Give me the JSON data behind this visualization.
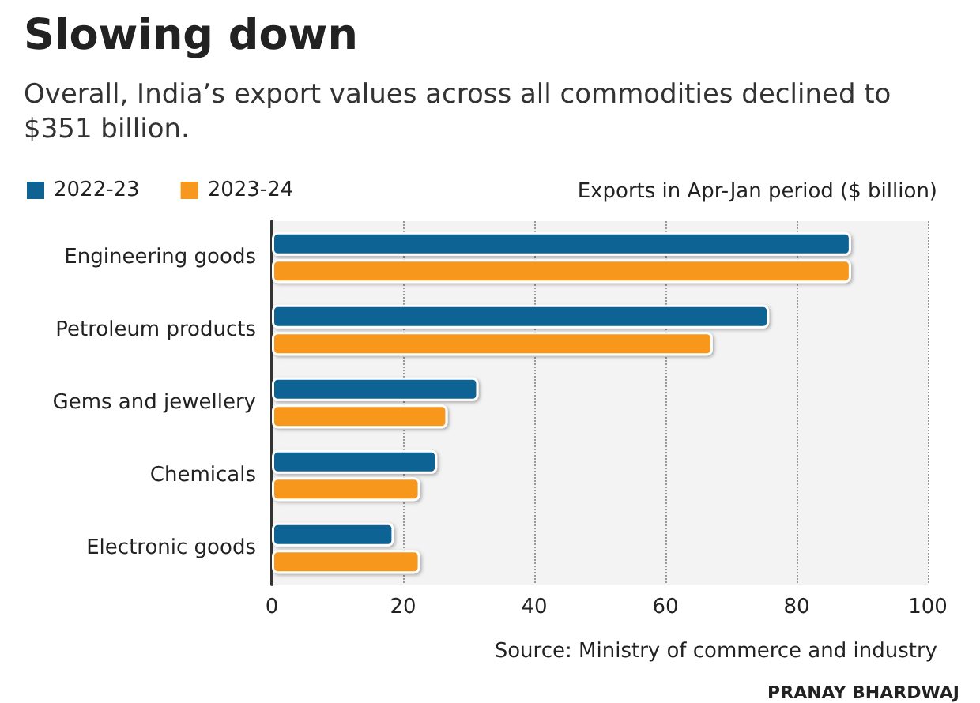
{
  "chart_data": {
    "type": "bar",
    "orientation": "horizontal",
    "title": "Slowing down",
    "subtitle": "Overall, India’s export values across all commodities declined to $351 billion.",
    "xlabel": "Exports in Apr-Jan period ($ billion)",
    "categories": [
      "Engineering goods",
      "Petroleum products",
      "Gems and jewellery",
      "Chemicals",
      "Electronic goods"
    ],
    "series": [
      {
        "name": "2022-23",
        "color": "#0e6393",
        "values": [
          88.3,
          75.8,
          31.5,
          25.2,
          18.6
        ]
      },
      {
        "name": "2023-24",
        "color": "#f7971e",
        "values": [
          88.3,
          67.2,
          26.8,
          22.6,
          22.6
        ]
      }
    ],
    "xlim": [
      0,
      100
    ],
    "xticks": [
      0,
      20,
      40,
      60,
      80,
      100
    ],
    "grid": "x",
    "legend": "top left",
    "annotations": [
      "Source: Ministry of commerce and industry",
      "PRANAY BHARDWAJ"
    ]
  }
}
